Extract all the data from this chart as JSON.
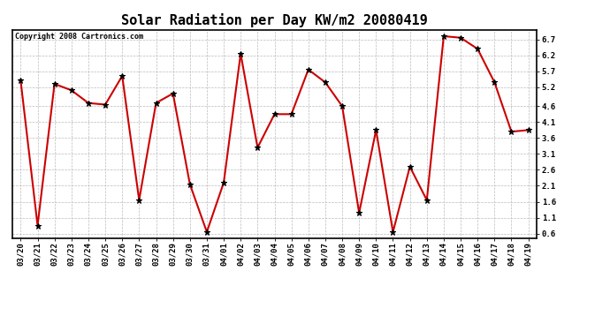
{
  "title": "Solar Radiation per Day KW/m2 20080419",
  "copyright": "Copyright 2008 Cartronics.com",
  "dates": [
    "03/20",
    "03/21",
    "03/22",
    "03/23",
    "03/24",
    "03/25",
    "03/26",
    "03/27",
    "03/28",
    "03/29",
    "03/30",
    "03/31",
    "04/01",
    "04/02",
    "04/03",
    "04/04",
    "04/05",
    "04/06",
    "04/07",
    "04/08",
    "04/09",
    "04/10",
    "04/11",
    "04/12",
    "04/13",
    "04/14",
    "04/15",
    "04/16",
    "04/17",
    "04/18",
    "04/19"
  ],
  "values": [
    5.4,
    0.85,
    5.3,
    5.1,
    4.7,
    4.65,
    5.55,
    1.65,
    4.7,
    5.0,
    2.15,
    0.65,
    2.2,
    6.25,
    3.3,
    4.35,
    4.35,
    5.75,
    5.35,
    4.6,
    1.25,
    3.85,
    0.65,
    2.7,
    1.65,
    6.8,
    6.75,
    6.4,
    5.35,
    3.8,
    3.85
  ],
  "line_color": "#cc0000",
  "marker": "*",
  "marker_size": 5,
  "marker_color": "#000000",
  "bg_color": "#ffffff",
  "plot_bg_color": "#ffffff",
  "grid_color": "#bbbbbb",
  "grid_style": "--",
  "yticks": [
    0.6,
    1.1,
    1.6,
    2.1,
    2.6,
    3.1,
    3.6,
    4.1,
    4.6,
    5.2,
    5.7,
    6.2,
    6.7
  ],
  "ylim": [
    0.45,
    7.0
  ],
  "title_fontsize": 11,
  "copyright_fontsize": 6,
  "tick_fontsize": 6.5,
  "border_color": "#000000"
}
